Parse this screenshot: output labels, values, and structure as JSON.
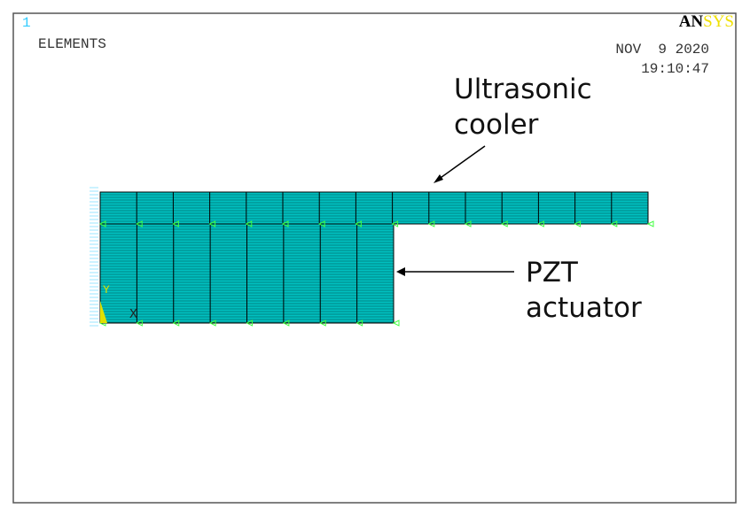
{
  "header": {
    "window_number": "1",
    "plot_label": "ELEMENTS",
    "date": "NOV  9 2020",
    "time": "19:10:47",
    "logo": {
      "part1": "AN",
      "part2": "SYS"
    }
  },
  "annotations": {
    "cooler": [
      "Ultrasonic",
      "cooler"
    ],
    "actuator": [
      "PZT",
      "actuator"
    ]
  },
  "triad": {
    "y": "Y",
    "x": "X"
  }
}
